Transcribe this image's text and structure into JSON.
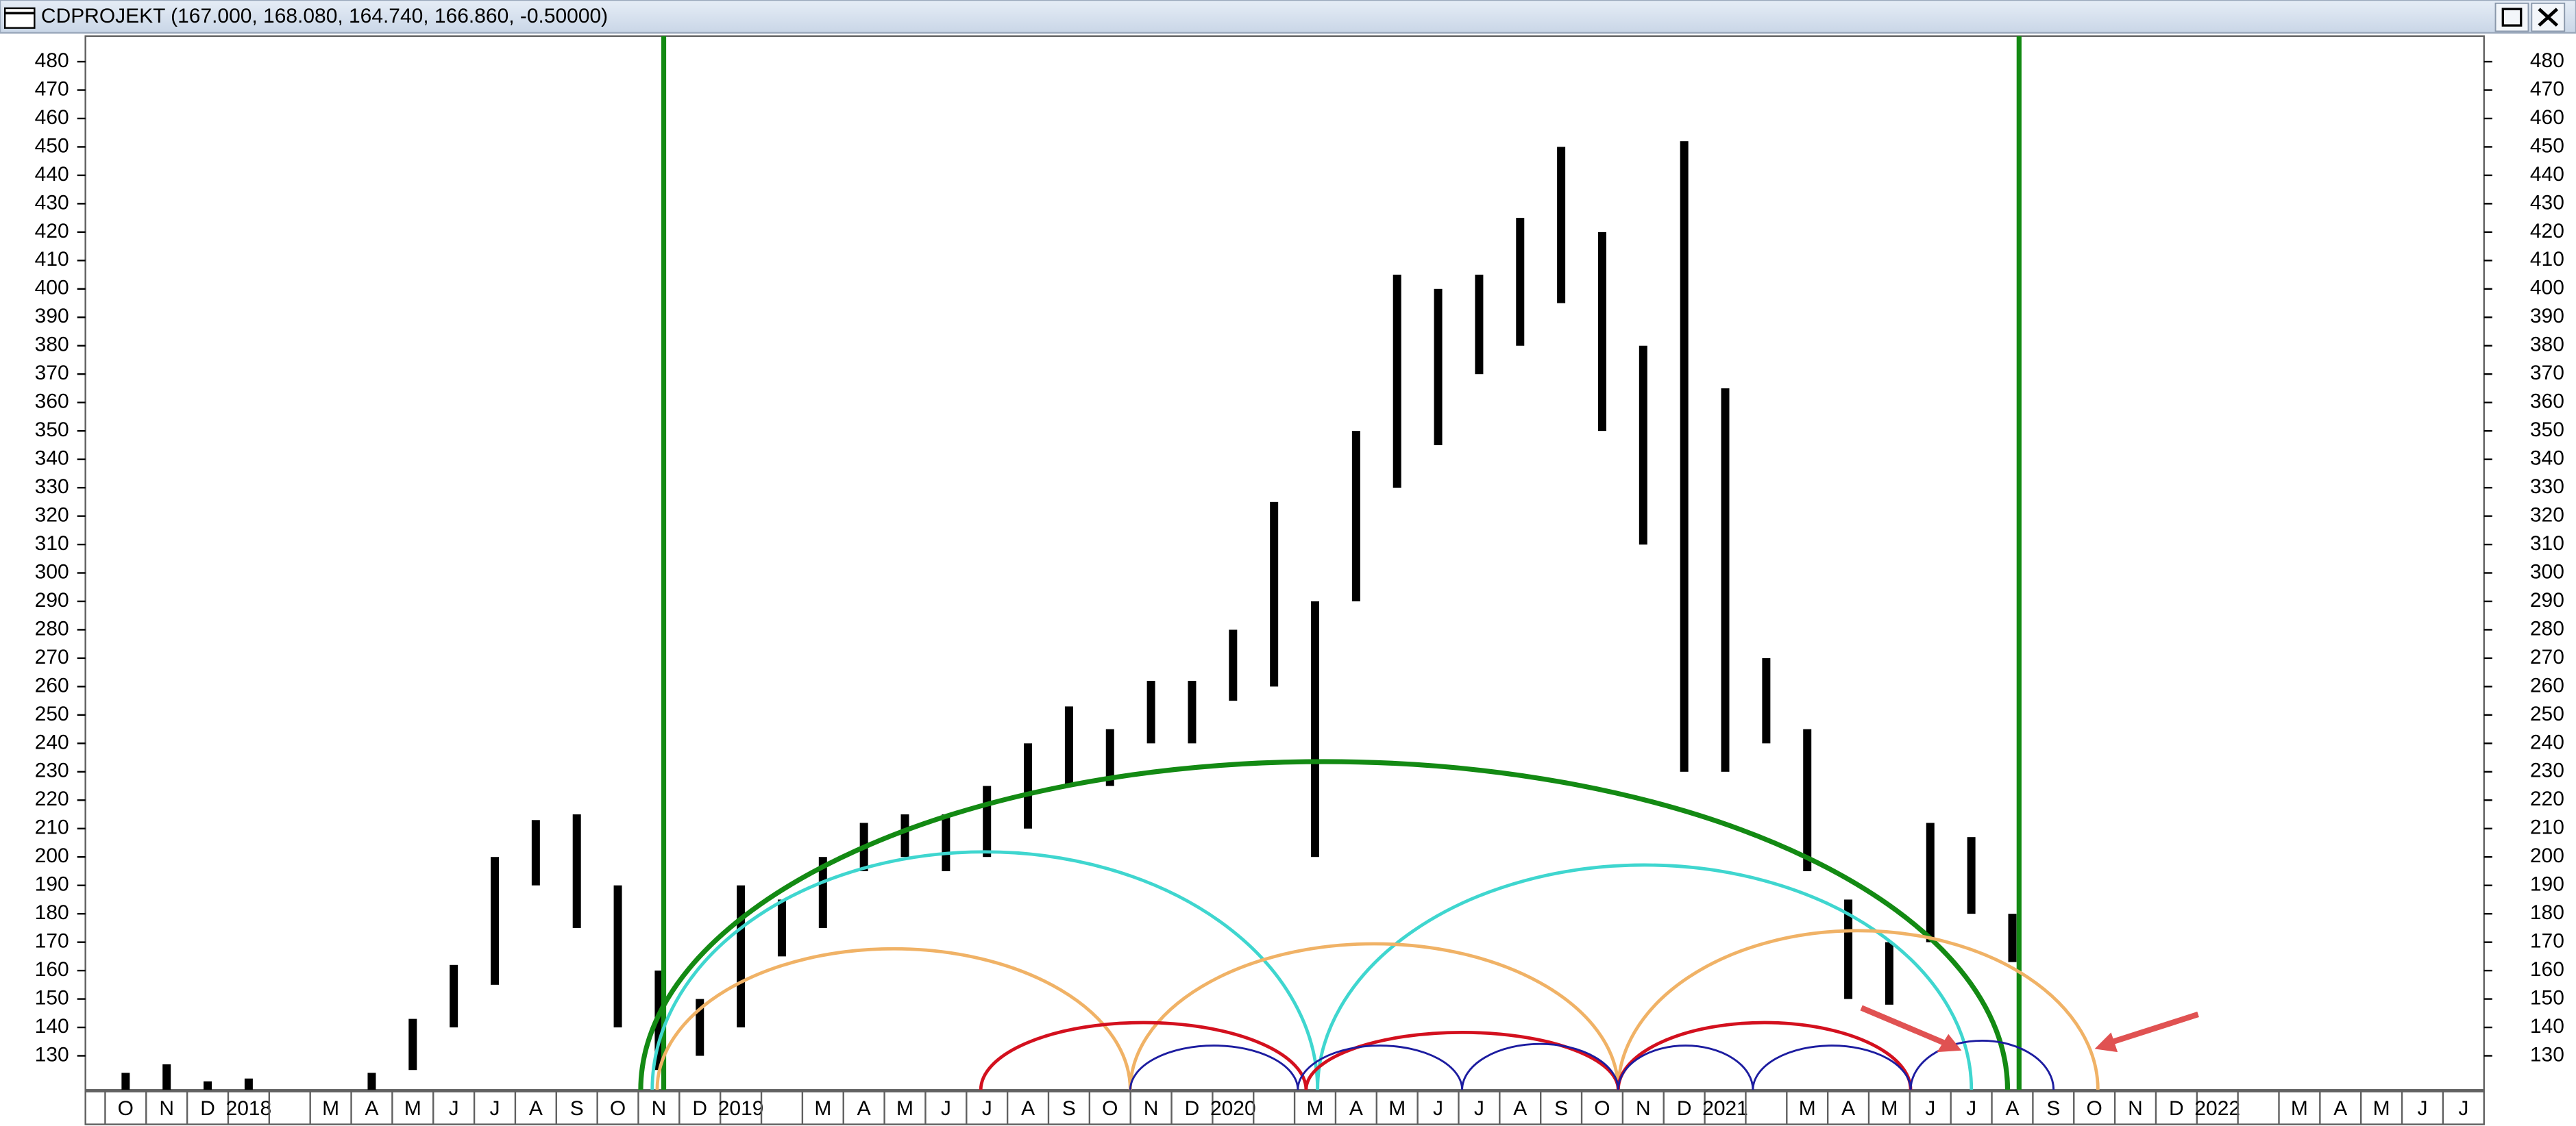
{
  "chart_data": {
    "type": "range-bar",
    "title": "CDPROJEKT (167.000, 168.080, 164.740, 166.860, -0.50000)",
    "categories": [
      "O",
      "N",
      "D",
      "2018",
      null,
      "M",
      "A",
      "M",
      "J",
      "J",
      "A",
      "S",
      "O",
      "N",
      "D",
      "2019",
      null,
      "M",
      "A",
      "M",
      "J",
      "J",
      "A",
      "S",
      "O",
      "N",
      "D",
      "2020",
      null,
      "M",
      "A",
      "M",
      "J",
      "J",
      "A",
      "S",
      "O",
      "N",
      "D",
      "2021",
      null,
      "M",
      "A",
      "M",
      "J",
      "J",
      "A",
      "S",
      "O",
      "N",
      "D",
      "2022",
      null,
      "M",
      "A",
      "M",
      "J",
      "J"
    ],
    "high": [
      124,
      127,
      121,
      122,
      null,
      null,
      124,
      143,
      162,
      200,
      213,
      215,
      190,
      160,
      150,
      190,
      185,
      200,
      212,
      215,
      215,
      225,
      240,
      253,
      245,
      262,
      262,
      280,
      325,
      290,
      350,
      405,
      400,
      405,
      425,
      450,
      420,
      380,
      452,
      365,
      270,
      245,
      185,
      170,
      212,
      207,
      180,
      null,
      null,
      null,
      null,
      null,
      null,
      null,
      null,
      null,
      null,
      null
    ],
    "low": [
      118,
      118,
      118,
      118,
      null,
      null,
      118,
      125,
      140,
      155,
      190,
      175,
      140,
      125,
      130,
      140,
      165,
      175,
      195,
      200,
      195,
      200,
      210,
      225,
      225,
      240,
      240,
      255,
      260,
      200,
      290,
      330,
      345,
      370,
      380,
      395,
      350,
      310,
      230,
      230,
      240,
      195,
      150,
      148,
      170,
      180,
      163,
      null,
      null,
      null,
      null,
      null,
      null,
      null,
      null,
      null,
      null,
      null
    ],
    "color": "#000000",
    "ylim": [
      118,
      489
    ],
    "yticks": [
      130,
      140,
      150,
      160,
      170,
      180,
      190,
      200,
      210,
      220,
      230,
      240,
      250,
      260,
      270,
      280,
      290,
      300,
      310,
      320,
      330,
      340,
      350,
      360,
      370,
      380,
      390,
      400,
      410,
      420,
      430,
      440,
      450,
      460,
      470,
      480
    ]
  }
}
